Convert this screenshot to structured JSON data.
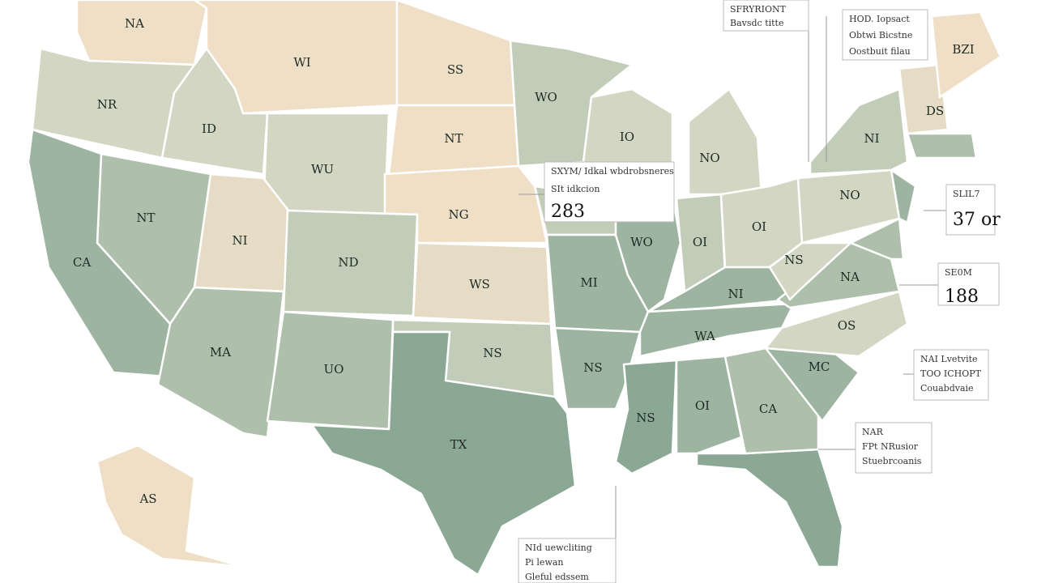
{
  "states": [
    {
      "label": "NA"
    },
    {
      "label": "NR"
    },
    {
      "label": "WI"
    },
    {
      "label": "ID"
    },
    {
      "label": "SS"
    },
    {
      "label": "NT"
    },
    {
      "label": "WO"
    },
    {
      "label": "IO"
    },
    {
      "label": "NO"
    },
    {
      "label": "WU"
    },
    {
      "label": "NG"
    },
    {
      "label": "NT"
    },
    {
      "label": "CA"
    },
    {
      "label": "NI"
    },
    {
      "label": "ND"
    },
    {
      "label": "WS"
    },
    {
      "label": "MA"
    },
    {
      "label": "UO"
    },
    {
      "label": "NS"
    },
    {
      "label": "TX"
    },
    {
      "label": "MI"
    },
    {
      "label": "NS"
    },
    {
      "label": "WO"
    },
    {
      "label": "OI"
    },
    {
      "label": "OI"
    },
    {
      "label": "NI"
    },
    {
      "label": "WA"
    },
    {
      "label": "NS"
    },
    {
      "label": "OI"
    },
    {
      "label": "CA"
    },
    {
      "label": "MC"
    },
    {
      "label": "OS"
    },
    {
      "label": "NA"
    },
    {
      "label": "NS"
    },
    {
      "label": "NO"
    },
    {
      "label": "NI"
    },
    {
      "label": "DS"
    },
    {
      "label": "BZI"
    },
    {
      "label": "AS"
    }
  ],
  "callouts": [
    {
      "lines": [
        "SFRYRIONT",
        "Bavsdc titte"
      ]
    },
    {
      "lines": [
        "HOD. Iopsact",
        "Obtwi Bicstne",
        "Oostbuit filau"
      ]
    },
    {
      "lines": [
        "SXYM/ Idkal wbdrobsneres",
        "SIt idkcion",
        283
      ]
    },
    {
      "lines": [
        "SLIL7",
        "37 or"
      ]
    },
    {
      "lines": [
        "SE0M",
        188
      ]
    },
    {
      "lines": [
        "NAI Lvetvite",
        "TOO ICHOPT",
        "Couabdvaie"
      ]
    },
    {
      "lines": [
        "NAR",
        "FPt NRusior",
        "Stuebrcoanis"
      ]
    },
    {
      "lines": [
        "NId uewcliting",
        "Pi lewan",
        "Gleful edssem"
      ]
    }
  ]
}
